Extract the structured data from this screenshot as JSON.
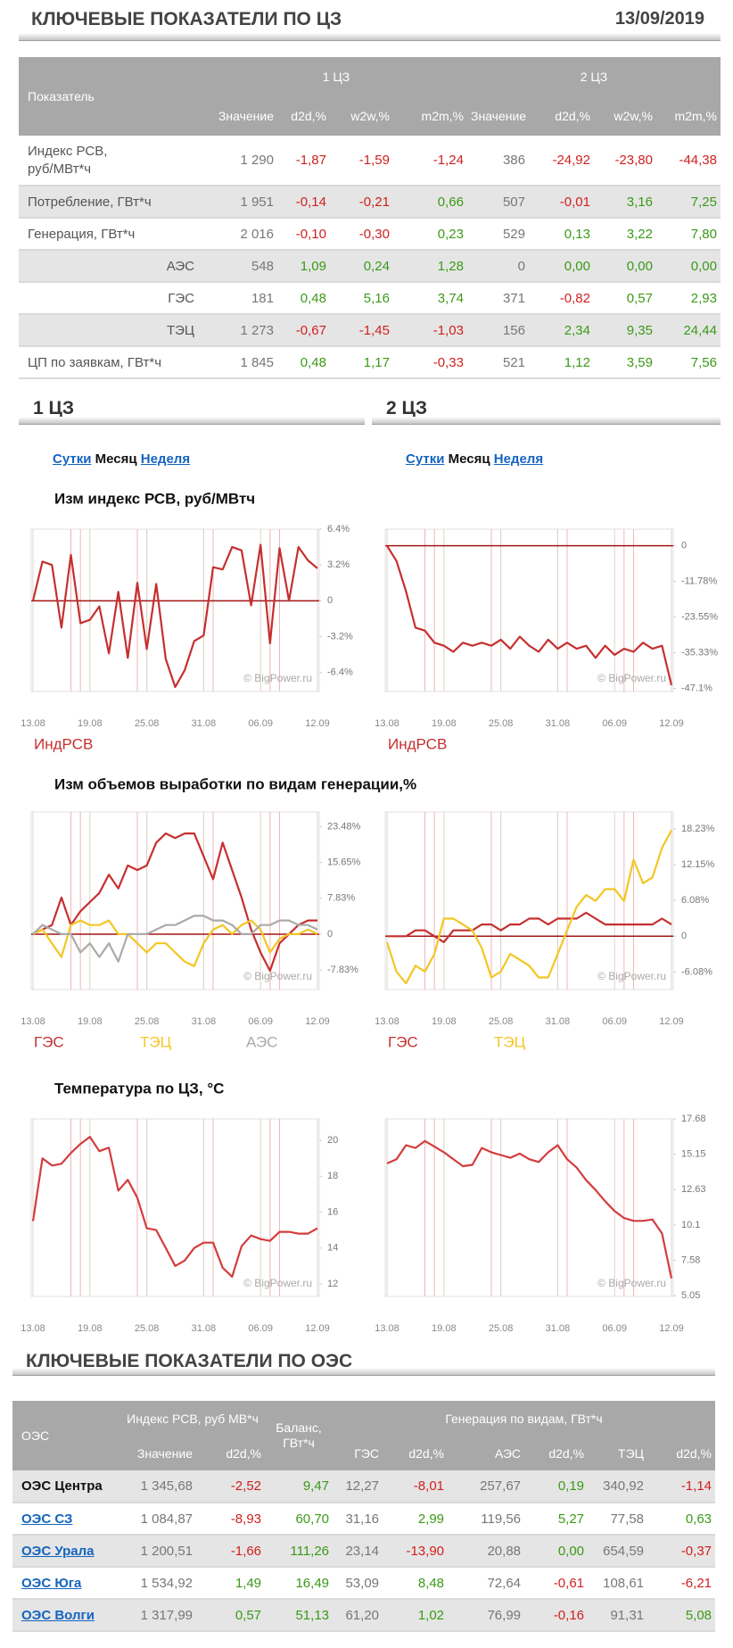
{
  "header": {
    "title": "КЛЮЧЕВЫЕ ПОКАЗАТЕЛИ ПО ЦЗ",
    "date": "13/09/2019"
  },
  "table1": {
    "header": {
      "label": "Показатель",
      "groups": [
        "1 ЦЗ",
        "2 ЦЗ"
      ],
      "columns": [
        "Значение",
        "d2d,%",
        "w2w,%",
        "m2m,%",
        "Значение",
        "d2d,%",
        "w2w,%",
        "m2m,%"
      ]
    },
    "rows": [
      {
        "label": "Индекс РСВ, руб/МВт*ч",
        "cells": [
          "1 290",
          "-1,87",
          "-1,59",
          "-1,24",
          "386",
          "-24,92",
          "-23,80",
          "-44,38"
        ]
      },
      {
        "label": "Потребление, ГВт*ч",
        "cells": [
          "1 951",
          "-0,14",
          "-0,21",
          "0,66",
          "507",
          "-0,01",
          "3,16",
          "7,25"
        ]
      },
      {
        "label": "Генерация, ГВт*ч",
        "cells": [
          "2 016",
          "-0,10",
          "-0,30",
          "0,23",
          "529",
          "0,13",
          "3,22",
          "7,80"
        ]
      },
      {
        "label": "АЭС",
        "cells": [
          "548",
          "1,09",
          "0,24",
          "1,28",
          "0",
          "0,00",
          "0,00",
          "0,00"
        ]
      },
      {
        "label": "ГЭС",
        "cells": [
          "181",
          "0,48",
          "5,16",
          "3,74",
          "371",
          "-0,82",
          "0,57",
          "2,93"
        ]
      },
      {
        "label": "ТЭЦ",
        "cells": [
          "1 273",
          "-0,67",
          "-1,45",
          "-1,03",
          "156",
          "2,34",
          "9,35",
          "24,44"
        ]
      },
      {
        "label": "ЦП по заявкам, ГВт*ч",
        "cells": [
          "1 845",
          "0,48",
          "1,17",
          "-0,33",
          "521",
          "1,12",
          "3,59",
          "7,56"
        ]
      }
    ]
  },
  "tabs": [
    "1 ЦЗ",
    "2 ЦЗ"
  ],
  "period_links": [
    [
      "Сутки",
      "Месяц",
      "Неделя"
    ],
    [
      "Сутки",
      "Месяц",
      "Неделя"
    ]
  ],
  "chart_data": [
    {
      "type": "line",
      "title": "Изм индекс РСВ, руб/МВтч",
      "annotation": "© BigPower.ru",
      "categories": [
        "13.08",
        null,
        null,
        null,
        null,
        null,
        "19.08",
        null,
        null,
        null,
        null,
        null,
        "25.08",
        null,
        null,
        null,
        null,
        null,
        "31.08",
        null,
        null,
        null,
        null,
        null,
        "06.09",
        null,
        null,
        null,
        null,
        null,
        "12.09"
      ],
      "series": [
        {
          "name": "ИндРСВ",
          "color": "#c62f2f",
          "values": [
            0,
            3.5,
            3.2,
            -2.4,
            4.1,
            -2,
            -1.7,
            -0.5,
            -4.7,
            0.8,
            -5.1,
            1.6,
            -4.3,
            1.5,
            -5.2,
            -7.7,
            -6.2,
            -3.6,
            -3.1,
            3.0,
            2.8,
            4.8,
            4.5,
            -0.4,
            5.0,
            -3.8,
            4.7,
            0,
            4.8,
            3.6,
            2.9
          ]
        }
      ],
      "ylim": [
        -8.1,
        6.4
      ],
      "yticks": [
        {
          "value": 6.4,
          "label": "6.4%"
        },
        {
          "value": 3.2,
          "label": "3.2%"
        },
        0,
        {
          "value": -3.2,
          "label": "-3.2%"
        },
        {
          "value": -6.4,
          "label": "-6.4%"
        }
      ],
      "zero_line": true
    },
    {
      "type": "line",
      "annotation": "© BigPower.ru",
      "categories": [
        "13.08",
        null,
        null,
        null,
        null,
        null,
        "19.08",
        null,
        null,
        null,
        null,
        null,
        "25.08",
        null,
        null,
        null,
        null,
        null,
        "31.08",
        null,
        null,
        null,
        null,
        null,
        "06.09",
        null,
        null,
        null,
        null,
        null,
        "12.09"
      ],
      "series": [
        {
          "name": "ИндРСВ",
          "color": "#c62f2f",
          "values": [
            0,
            -5,
            -15,
            -27,
            -28,
            -32,
            -33,
            -35,
            -32,
            -33,
            -32,
            -33,
            -31,
            -34,
            -30,
            -33,
            -35,
            -31,
            -34,
            -32,
            -34,
            -33,
            -37,
            -33,
            -36,
            -34,
            -35,
            -32,
            -34,
            -33,
            -46
          ]
        }
      ],
      "ylim": [
        -48.1,
        5.5
      ],
      "yticks": [
        0,
        {
          "value": -11.78,
          "label": "-11.78%"
        },
        {
          "value": -23.55,
          "label": "-23.55%"
        },
        {
          "value": -35.33,
          "label": "-35.33%"
        },
        {
          "value": -47.1,
          "label": "-47.1%"
        }
      ],
      "zero_line": true
    },
    {
      "type": "line",
      "title": "Изм объемов выработки по видам генерации,%",
      "annotation": "© BigPower.ru",
      "categories": [
        "13.08",
        null,
        null,
        null,
        null,
        null,
        "19.08",
        null,
        null,
        null,
        null,
        null,
        "25.08",
        null,
        null,
        null,
        null,
        null,
        "31.08",
        null,
        null,
        null,
        null,
        null,
        "06.09",
        null,
        null,
        null,
        null,
        null,
        "12.09"
      ],
      "series": [
        {
          "name": "ГЭС",
          "color": "#c62f2f",
          "values": [
            0,
            1,
            2,
            8,
            2,
            5,
            7,
            9,
            13,
            10,
            15,
            14,
            15,
            20,
            22,
            21,
            22,
            22,
            17,
            12,
            20,
            14,
            8,
            1,
            -4,
            -8,
            -2,
            0,
            2,
            3,
            3
          ]
        },
        {
          "name": "ТЭЦ",
          "color": "#f3c623",
          "values": [
            0,
            1,
            -2,
            -5,
            2,
            3,
            2,
            2,
            3,
            0,
            0,
            -2,
            -4,
            -2,
            -2,
            -4,
            -6,
            -7,
            -2,
            1,
            2,
            0,
            2,
            3,
            1,
            -4,
            -1,
            0,
            0,
            1,
            0
          ]
        },
        {
          "name": "АЭС",
          "color": "#aaaaaa",
          "values": [
            0,
            2,
            1,
            0,
            0,
            -4,
            -2,
            -5,
            -2,
            -6,
            0,
            0,
            0,
            1,
            2,
            2,
            3,
            4,
            4,
            3,
            3,
            2,
            0,
            0,
            2,
            2,
            3,
            3,
            2,
            2,
            1
          ]
        }
      ],
      "ylim": [
        -12.1,
        26.7
      ],
      "yticks": [
        {
          "value": 23.48,
          "label": "23.48%"
        },
        {
          "value": 15.65,
          "label": "15.65%"
        },
        {
          "value": 7.83,
          "label": "7.83%"
        },
        0,
        {
          "value": -7.83,
          "label": "-7.83%"
        }
      ],
      "zero_line": true
    },
    {
      "type": "line",
      "annotation": "© BigPower.ru",
      "categories": [
        "13.08",
        null,
        null,
        null,
        null,
        null,
        "19.08",
        null,
        null,
        null,
        null,
        null,
        "25.08",
        null,
        null,
        null,
        null,
        null,
        "31.08",
        null,
        null,
        null,
        null,
        null,
        "06.09",
        null,
        null,
        null,
        null,
        null,
        "12.09"
      ],
      "series": [
        {
          "name": "ГЭС",
          "color": "#c62f2f",
          "values": [
            0,
            0,
            0,
            1,
            1,
            0,
            -1,
            1,
            1,
            1,
            2,
            2,
            1,
            2,
            2,
            3,
            3,
            2,
            3,
            3,
            3,
            4,
            3,
            2,
            2,
            2,
            2,
            2,
            2,
            3,
            2
          ]
        },
        {
          "name": "ТЭЦ",
          "color": "#f3c623",
          "values": [
            -1,
            -6,
            -8,
            -5,
            -6,
            -3,
            3,
            3,
            2,
            1,
            -2,
            -7,
            -6,
            -3,
            -4,
            -5,
            -7,
            -7,
            -3,
            1,
            5,
            7,
            6,
            8,
            8,
            6,
            13,
            9,
            10,
            15,
            18
          ]
        }
      ],
      "ylim": [
        -9.05,
        21.1
      ],
      "yticks": [
        {
          "value": 18.23,
          "label": "18.23%"
        },
        {
          "value": 12.15,
          "label": "12.15%"
        },
        {
          "value": 6.08,
          "label": "6.08%"
        },
        0,
        {
          "value": -6.08,
          "label": "-6.08%"
        }
      ],
      "zero_line": true
    },
    {
      "type": "line",
      "title": "Температура по ЦЗ, °C",
      "annotation": "© BigPower.ru",
      "categories": [
        "13.08",
        null,
        null,
        null,
        null,
        null,
        "19.08",
        null,
        null,
        null,
        null,
        null,
        "25.08",
        null,
        null,
        null,
        null,
        null,
        "31.08",
        null,
        null,
        null,
        null,
        null,
        "06.09",
        null,
        null,
        null,
        null,
        null,
        "12.09"
      ],
      "series": [
        {
          "name": "Температура",
          "color": "#d43c3c",
          "values": [
            15.5,
            19,
            18.6,
            18.7,
            19.3,
            19.8,
            20.2,
            19.4,
            19.6,
            17.2,
            17.8,
            16.8,
            15.1,
            15,
            14,
            13,
            13.3,
            14,
            14.3,
            14.3,
            12.9,
            12.4,
            14.1,
            14.7,
            14.5,
            14.4,
            14.9,
            14.9,
            14.8,
            14.8,
            15.1
          ]
        }
      ],
      "ylim": [
        11.3,
        21.2
      ],
      "yticks": [
        20,
        18,
        16,
        14,
        12
      ],
      "zero_line": false,
      "legend": false
    },
    {
      "type": "line",
      "annotation": "© BigPower.ru",
      "categories": [
        "13.08",
        null,
        null,
        null,
        null,
        null,
        "19.08",
        null,
        null,
        null,
        null,
        null,
        "25.08",
        null,
        null,
        null,
        null,
        null,
        "31.08",
        null,
        null,
        null,
        null,
        null,
        "06.09",
        null,
        null,
        null,
        null,
        null,
        "12.09"
      ],
      "series": [
        {
          "name": "Температура",
          "color": "#d43c3c",
          "values": [
            14.5,
            14.8,
            15.8,
            15.6,
            16.1,
            15.7,
            15.3,
            14.8,
            14.3,
            14.4,
            15.6,
            15.3,
            15.1,
            14.9,
            15.2,
            14.8,
            14.6,
            15.3,
            15.8,
            14.8,
            14.2,
            13.3,
            12.6,
            11.8,
            11.1,
            10.6,
            10.4,
            10.4,
            10.5,
            9.5,
            6.3
          ]
        }
      ],
      "ylim": [
        5.0,
        17.68
      ],
      "yticks": [
        17.68,
        15.15,
        12.63,
        10.1,
        7.58,
        5.05
      ],
      "zero_line": false,
      "legend": false
    }
  ],
  "table2": {
    "title": "КЛЮЧЕВЫЕ ПОКАЗАТЕЛИ ПО ОЭС",
    "header": {
      "label": "ОЭС",
      "price": "Индекс РСВ, руб МВ*ч",
      "balance": "Баланс, ГВт*ч",
      "generation": "Генерация по видам, ГВт*ч",
      "columns": [
        "Значение",
        "d2d,%",
        "ГЭС",
        "d2d,%",
        "АЭС",
        "d2d,%",
        "ТЭЦ",
        "d2d,%"
      ]
    },
    "rows": [
      {
        "label": "ОЭС Центра",
        "cells": [
          "1 345,68",
          "-2,52",
          "9,47",
          "12,27",
          "-8,01",
          "257,67",
          "0,19",
          "340,92",
          "-1,14"
        ]
      },
      {
        "label": "ОЭС СЗ",
        "cells": [
          "1 084,87",
          "-8,93",
          "60,70",
          "31,16",
          "2,99",
          "119,56",
          "5,27",
          "77,58",
          "0,63"
        ]
      },
      {
        "label": "ОЭС Урала",
        "cells": [
          "1 200,51",
          "-1,66",
          "111,26",
          "23,14",
          "-13,90",
          "20,88",
          "0,00",
          "654,59",
          "-0,37"
        ]
      },
      {
        "label": "ОЭС Юга",
        "cells": [
          "1 534,92",
          "1,49",
          "16,49",
          "53,09",
          "8,48",
          "72,64",
          "-0,61",
          "108,61",
          "-6,21"
        ]
      },
      {
        "label": "ОЭС Волги",
        "cells": [
          "1 317,99",
          "0,57",
          "51,13",
          "61,20",
          "1,02",
          "76,99",
          "-0,16",
          "91,31",
          "5,08"
        ]
      }
    ]
  }
}
